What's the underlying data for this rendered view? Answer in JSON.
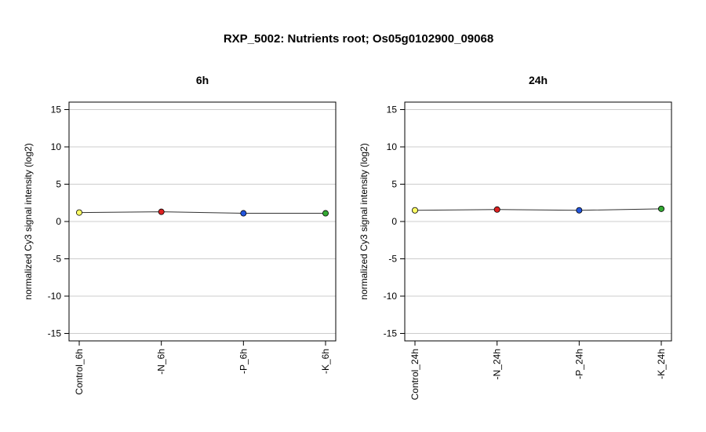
{
  "title": "RXP_5002: Nutrients root; Os05g0102900_09068",
  "chart_data": [
    {
      "type": "line",
      "title": "6h",
      "ylabel": "normalized Cy3 signal intensity (log2)",
      "categories": [
        "Control_6h",
        "-N_6h",
        "-P_6h",
        "-K_6h"
      ],
      "values": [
        1.2,
        1.3,
        1.1,
        1.1
      ],
      "point_colors": [
        "#ffff66",
        "#dd2222",
        "#2255dd",
        "#33aa33"
      ],
      "ylim": [
        -16,
        16
      ],
      "yticks": [
        -15,
        -10,
        -5,
        0,
        5,
        10,
        15
      ],
      "grid": true
    },
    {
      "type": "line",
      "title": "24h",
      "ylabel": "normalized Cy3 signal intensity (log2)",
      "categories": [
        "Control_24h",
        "-N_24h",
        "-P_24h",
        "-K_24h"
      ],
      "values": [
        1.5,
        1.6,
        1.5,
        1.7
      ],
      "point_colors": [
        "#ffff66",
        "#dd2222",
        "#2255dd",
        "#33aa33"
      ],
      "ylim": [
        -16,
        16
      ],
      "yticks": [
        -15,
        -10,
        -5,
        0,
        5,
        10,
        15
      ],
      "grid": true
    }
  ]
}
